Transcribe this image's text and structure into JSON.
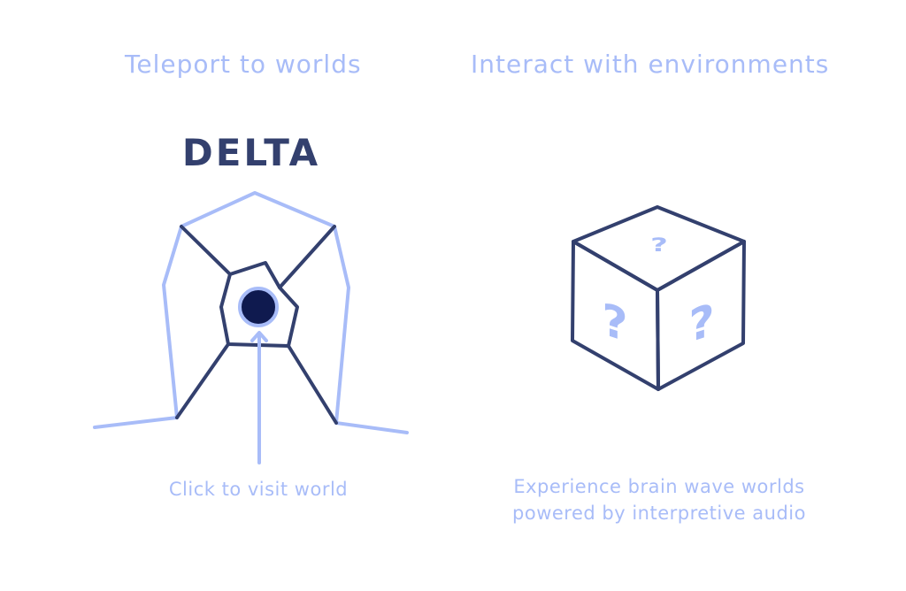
{
  "headings": {
    "left": "Teleport to worlds",
    "right": "Interact with environments"
  },
  "world": {
    "name": "DELTA",
    "cta": "Click to visit world"
  },
  "cube": {
    "glyph": "?"
  },
  "experience": {
    "line1": "Experience brain wave worlds",
    "line2": "powered by interpretive audio"
  },
  "colors": {
    "accent_light": "#a8bcf8",
    "accent_dark": "#33406e",
    "orb": "#0f1a4f"
  },
  "icons": {
    "portal": "portal-tunnel-icon",
    "orb": "world-orb-icon",
    "arrow": "arrow-up-icon",
    "mystery": "mystery-cube-icon"
  }
}
